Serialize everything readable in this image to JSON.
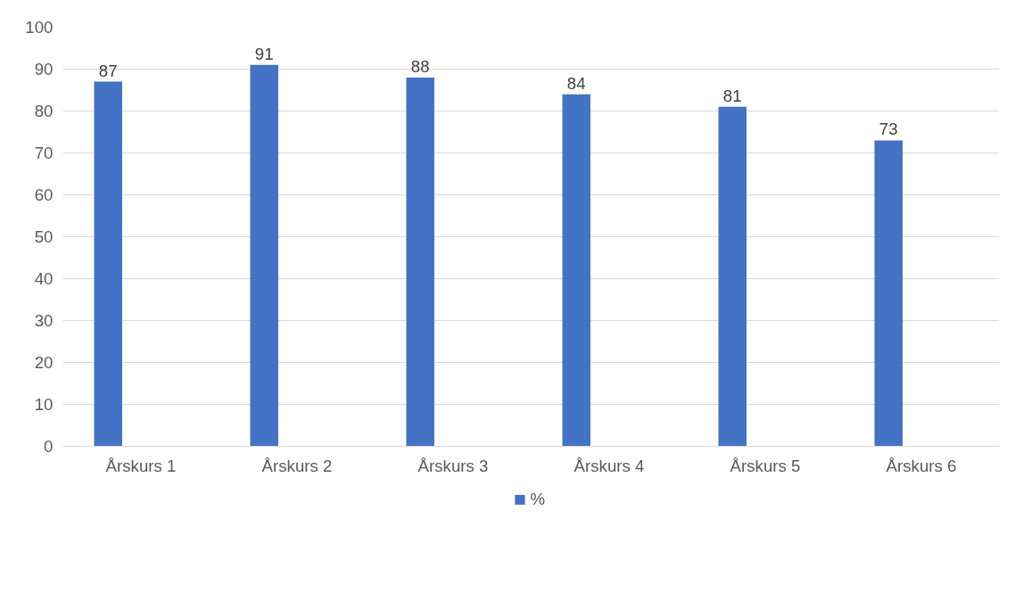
{
  "chart_data": {
    "type": "bar",
    "categories": [
      "Årskurs 1",
      "Årskurs 2",
      "Årskurs 3",
      "Årskurs 4",
      "Årskurs 5",
      "Årskurs 6"
    ],
    "series": [
      {
        "name": "%",
        "color": "#4472c4",
        "values": [
          87,
          91,
          88,
          84,
          81,
          73
        ]
      }
    ],
    "ylim": [
      0,
      100
    ],
    "yticks": [
      0,
      10,
      20,
      30,
      40,
      50,
      60,
      70,
      80,
      90,
      100
    ],
    "grid": "y",
    "legend": "bottom",
    "data_labels": true
  }
}
